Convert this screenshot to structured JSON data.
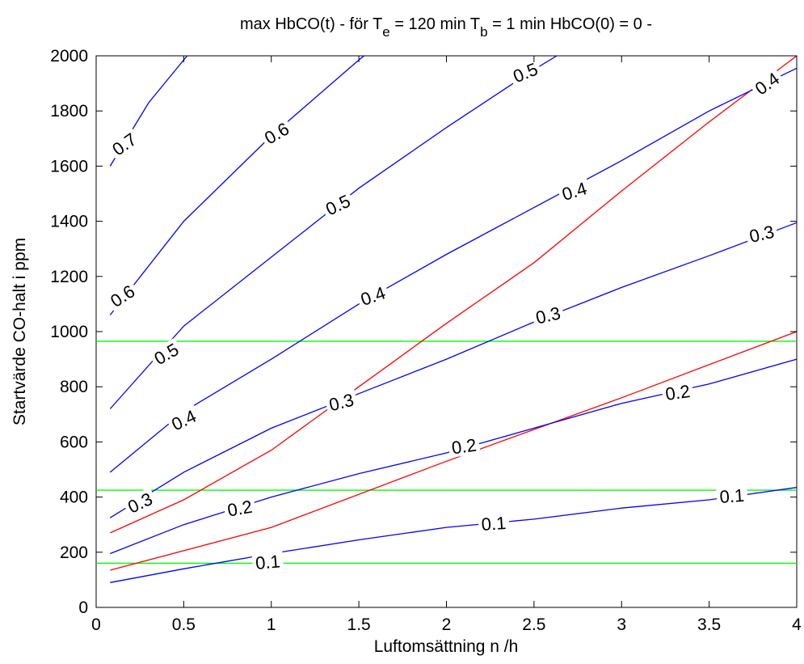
{
  "chart_data": {
    "type": "line",
    "title": {
      "part1": "max HbCO(t) -  för   T",
      "sub1": "e",
      "part2": " = 120 min    T",
      "sub2": "b",
      "part3": " = 1 min   HbCO(0) = 0 -"
    },
    "xlabel": "Luftomsättning  n  /h",
    "ylabel": "Startvärde CO-halt i ppm",
    "xlim": [
      0,
      4
    ],
    "ylim": [
      0,
      2000
    ],
    "xticks": [
      "0",
      "0.5",
      "1",
      "1.5",
      "2",
      "2.5",
      "3",
      "3.5",
      "4"
    ],
    "yticks": [
      "0",
      "200",
      "400",
      "600",
      "800",
      "1000",
      "1200",
      "1400",
      "1600",
      "1800",
      "2000"
    ],
    "colors": {
      "contour": "#0000ff",
      "limit": "#ff0000",
      "reference": "#00ff00"
    },
    "blue_series": [
      {
        "name": "0.1",
        "x": [
          0.08,
          0.5,
          1,
          1.5,
          2,
          2.5,
          3,
          3.5,
          4
        ],
        "y": [
          90,
          140,
          195,
          245,
          290,
          320,
          360,
          390,
          435
        ]
      },
      {
        "name": "0.2",
        "x": [
          0.08,
          0.5,
          1,
          1.5,
          2,
          2.5,
          3,
          3.5,
          4
        ],
        "y": [
          195,
          300,
          400,
          485,
          560,
          650,
          740,
          810,
          900
        ]
      },
      {
        "name": "0.3",
        "x": [
          0.08,
          0.5,
          1,
          1.5,
          2,
          2.5,
          3,
          3.5,
          4
        ],
        "y": [
          325,
          490,
          650,
          775,
          900,
          1035,
          1160,
          1275,
          1395
        ]
      },
      {
        "name": "0.4",
        "x": [
          0.08,
          0.5,
          1,
          1.5,
          2,
          2.5,
          3,
          3.5,
          4
        ],
        "y": [
          490,
          710,
          900,
          1100,
          1280,
          1450,
          1620,
          1800,
          1955
        ]
      },
      {
        "name": "0.5",
        "x": [
          0.08,
          0.5,
          1,
          1.5,
          2,
          2.5,
          2.63
        ],
        "y": [
          720,
          1020,
          1270,
          1520,
          1740,
          1950,
          2000
        ]
      },
      {
        "name": "0.6",
        "x": [
          0.08,
          0.5,
          1,
          1.5,
          1.53
        ],
        "y": [
          1060,
          1400,
          1710,
          1985,
          2000
        ]
      },
      {
        "name": "0.7",
        "x": [
          0.08,
          0.3,
          0.5,
          0.52
        ],
        "y": [
          1600,
          1830,
          1985,
          2000
        ]
      }
    ],
    "red_series": [
      {
        "name": "0.2",
        "x": [
          0.08,
          1,
          2,
          3,
          4
        ],
        "y": [
          135,
          290,
          530,
          760,
          1000
        ]
      },
      {
        "name": "0.4",
        "x": [
          0.08,
          0.5,
          1,
          1.5,
          2,
          2.5,
          3,
          3.5,
          4
        ],
        "y": [
          270,
          390,
          570,
          800,
          1030,
          1250,
          1510,
          1760,
          2000
        ]
      }
    ],
    "green_lines": [
      160,
      425,
      965
    ],
    "labels": [
      {
        "text": "0.1",
        "x": 0.98,
        "y": 165,
        "angle": -5
      },
      {
        "text": "0.1",
        "x": 2.27,
        "y": 305,
        "angle": -4
      },
      {
        "text": "0.1",
        "x": 3.63,
        "y": 405,
        "angle": -4
      },
      {
        "text": "0.2",
        "x": 0.82,
        "y": 360,
        "angle": -10
      },
      {
        "text": "0.2",
        "x": 2.1,
        "y": 585,
        "angle": -8
      },
      {
        "text": "0.2",
        "x": 3.32,
        "y": 780,
        "angle": -8
      },
      {
        "text": "0.3",
        "x": 0.25,
        "y": 380,
        "angle": -25
      },
      {
        "text": "0.3",
        "x": 1.4,
        "y": 745,
        "angle": -14
      },
      {
        "text": "0.3",
        "x": 2.58,
        "y": 1060,
        "angle": -13
      },
      {
        "text": "0.3",
        "x": 3.8,
        "y": 1355,
        "angle": -13
      },
      {
        "text": "0.4",
        "x": 0.5,
        "y": 680,
        "angle": -25
      },
      {
        "text": "0.4",
        "x": 1.58,
        "y": 1130,
        "angle": -19
      },
      {
        "text": "0.4",
        "x": 2.73,
        "y": 1510,
        "angle": -17
      },
      {
        "text": "0.4",
        "x": 3.83,
        "y": 1900,
        "angle": -35
      },
      {
        "text": "0.5",
        "x": 0.4,
        "y": 920,
        "angle": -30
      },
      {
        "text": "0.5",
        "x": 1.38,
        "y": 1460,
        "angle": -25
      },
      {
        "text": "0.5",
        "x": 2.45,
        "y": 1940,
        "angle": -22
      },
      {
        "text": "0.6",
        "x": 0.15,
        "y": 1130,
        "angle": -33
      },
      {
        "text": "0.6",
        "x": 1.03,
        "y": 1720,
        "angle": -30
      },
      {
        "text": "0.7",
        "x": 0.16,
        "y": 1680,
        "angle": -35
      }
    ]
  }
}
